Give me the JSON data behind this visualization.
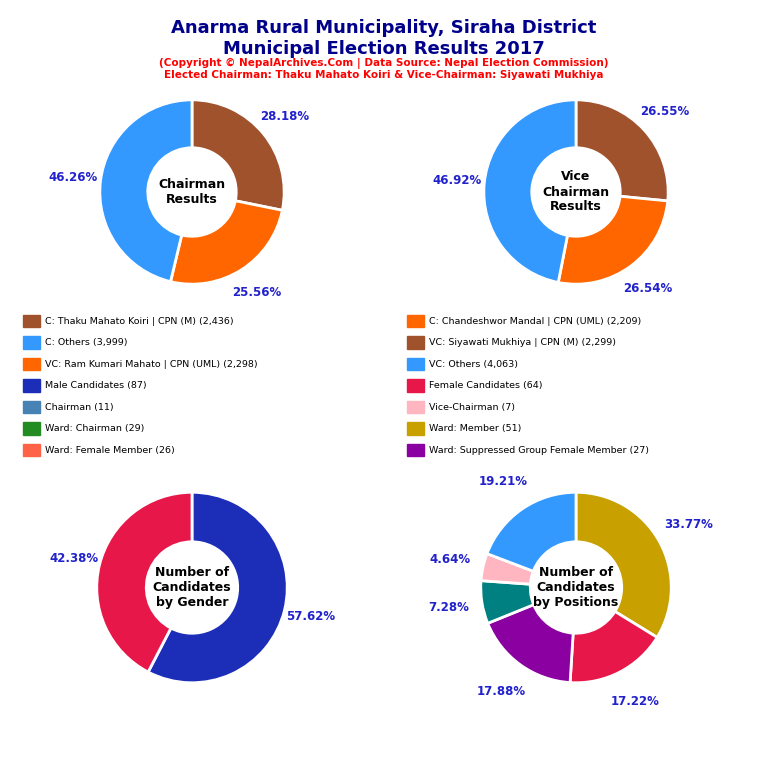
{
  "title": "Anarma Rural Municipality, Siraha District\nMunicipal Election Results 2017",
  "subtitle": "(Copyright © NepalArchives.Com | Data Source: Nepal Election Commission)\nElected Chairman: Thaku Mahato Koiri & Vice-Chairman: Siyawati Mukhiya",
  "title_color": "#00008B",
  "subtitle_color": "#FF0000",
  "chart1_label": "Chairman\nResults",
  "chart1_values": [
    28.18,
    25.56,
    46.26
  ],
  "chart1_colors": [
    "#A0522D",
    "#FF6600",
    "#3399FF"
  ],
  "chart1_pct_labels": [
    "28.18%",
    "25.56%",
    "46.26%"
  ],
  "chart1_startangle": 90,
  "chart2_label": "Vice\nChairman\nResults",
  "chart2_values": [
    26.55,
    26.54,
    46.92
  ],
  "chart2_colors": [
    "#A0522D",
    "#FF6600",
    "#3399FF"
  ],
  "chart2_pct_labels": [
    "26.55%",
    "26.54%",
    "46.92%"
  ],
  "chart2_startangle": 90,
  "chart3_label": "Number of\nCandidates\nby Gender",
  "chart3_values": [
    57.62,
    42.38
  ],
  "chart3_colors": [
    "#1C2DB8",
    "#E8174A"
  ],
  "chart3_pct_labels": [
    "57.62%",
    "42.38%"
  ],
  "chart3_startangle": 90,
  "chart4_label": "Number of\nCandidates\nby Positions",
  "chart4_values": [
    33.77,
    17.22,
    17.88,
    7.28,
    4.64,
    19.21
  ],
  "chart4_colors": [
    "#C8A000",
    "#E8174A",
    "#8B00A0",
    "#008080",
    "#FFB6C1",
    "#3399FF"
  ],
  "chart4_pct_labels": [
    "33.77%",
    "17.22%",
    "17.88%",
    "7.28%",
    "4.64%",
    "19.21%"
  ],
  "chart4_startangle": 90,
  "legend_left": [
    {
      "label": "C: Thaku Mahato Koiri | CPN (M) (2,436)",
      "color": "#A0522D"
    },
    {
      "label": "C: Others (3,999)",
      "color": "#3399FF"
    },
    {
      "label": "VC: Ram Kumari Mahato | CPN (UML) (2,298)",
      "color": "#FF6600"
    },
    {
      "label": "Male Candidates (87)",
      "color": "#1C2DB8"
    },
    {
      "label": "Chairman (11)",
      "color": "#4682B4"
    },
    {
      "label": "Ward: Chairman (29)",
      "color": "#228B22"
    },
    {
      "label": "Ward: Female Member (26)",
      "color": "#FF6347"
    }
  ],
  "legend_right": [
    {
      "label": "C: Chandeshwor Mandal | CPN (UML) (2,209)",
      "color": "#FF6600"
    },
    {
      "label": "VC: Siyawati Mukhiya | CPN (M) (2,299)",
      "color": "#A0522D"
    },
    {
      "label": "VC: Others (4,063)",
      "color": "#3399FF"
    },
    {
      "label": "Female Candidates (64)",
      "color": "#E8174A"
    },
    {
      "label": "Vice-Chairman (7)",
      "color": "#FFB6C1"
    },
    {
      "label": "Ward: Member (51)",
      "color": "#C8A000"
    },
    {
      "label": "Ward: Suppressed Group Female Member (27)",
      "color": "#8B00A0"
    }
  ],
  "background_color": "#FFFFFF",
  "pct_color": "#2222CC"
}
